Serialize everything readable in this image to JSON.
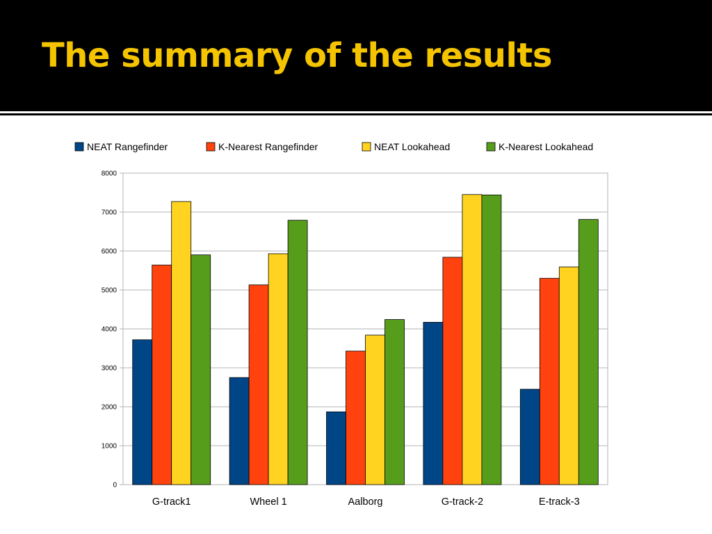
{
  "slide": {
    "title": "The summary of the results"
  },
  "colors": {
    "title": "#f5c400",
    "NEAT Rangefinder": "#004586",
    "K-Nearest Rangefinder": "#ff420e",
    "NEAT Lookahead": "#ffd320",
    "K-Nearest Lookahead": "#579d1c"
  },
  "chart_data": {
    "type": "bar",
    "title": "",
    "xlabel": "",
    "ylabel": "",
    "categories": [
      "G-track1",
      "Wheel 1",
      "Aalborg",
      "G-track-2",
      "E-track-3"
    ],
    "series": [
      {
        "name": "NEAT Rangefinder",
        "values": [
          3720,
          2750,
          1870,
          4170,
          2450
        ]
      },
      {
        "name": "K-Nearest Rangefinder",
        "values": [
          5640,
          5130,
          3430,
          5840,
          5300
        ]
      },
      {
        "name": "NEAT Lookahead",
        "values": [
          7270,
          5930,
          3840,
          7450,
          5590
        ]
      },
      {
        "name": "K-Nearest Lookahead",
        "values": [
          5900,
          6790,
          4240,
          7440,
          6810
        ]
      }
    ],
    "ylim": [
      0,
      8000
    ],
    "yticks": [
      0,
      1000,
      2000,
      3000,
      4000,
      5000,
      6000,
      7000,
      8000
    ],
    "grid": true,
    "legend_position": "top"
  }
}
